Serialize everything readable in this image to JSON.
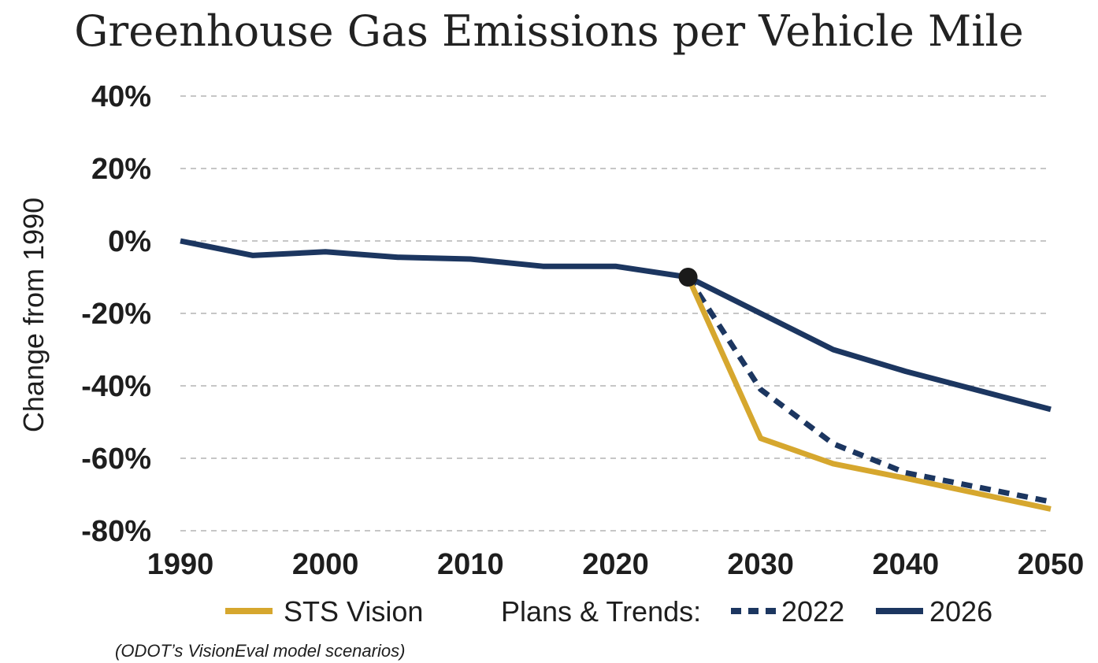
{
  "chart_data": {
    "type": "line",
    "title": "Greenhouse Gas Emissions per Vehicle Mile",
    "ylabel": "Change from 1990",
    "xlabel": "",
    "xlim": [
      1990,
      2050
    ],
    "ylim": [
      -80,
      40
    ],
    "x_ticks": [
      1990,
      2000,
      2010,
      2020,
      2030,
      2040,
      2050
    ],
    "x_tick_labels": [
      "1990",
      "2000",
      "2010",
      "2020",
      "2030",
      "2040",
      "2050"
    ],
    "y_ticks": [
      40,
      20,
      0,
      -20,
      -40,
      -60,
      -80
    ],
    "y_tick_labels": [
      "40%",
      "20%",
      "0%",
      "-20%",
      "-40%",
      "-60%",
      "-80%"
    ],
    "grid": "horizontal dashed",
    "legend_placement": "bottom",
    "legend_group_label": "Plans & Trends:",
    "note": "(ODOT’s VisionEval model scenarios)",
    "marker_point": {
      "x": 2025,
      "y": -10
    },
    "series": [
      {
        "name": "2026",
        "color": "#1c3660",
        "style": "solid",
        "x": [
          1990,
          1995,
          2000,
          2005,
          2010,
          2015,
          2020,
          2025,
          2030,
          2035,
          2040,
          2050
        ],
        "y": [
          0,
          -4,
          -3,
          -4.5,
          -5,
          -7,
          -7,
          -10,
          -20,
          -30,
          -36,
          -46.5
        ]
      },
      {
        "name": "2022",
        "color": "#1c3660",
        "style": "dashed",
        "x": [
          2025,
          2030,
          2035,
          2040,
          2050
        ],
        "y": [
          -10,
          -41,
          -56,
          -64,
          -72
        ]
      },
      {
        "name": "STS Vision",
        "color": "#d6a72e",
        "style": "solid",
        "x": [
          2025,
          2030,
          2035,
          2040,
          2050
        ],
        "y": [
          -10,
          -54.5,
          -61.5,
          -65.5,
          -74
        ]
      }
    ]
  }
}
